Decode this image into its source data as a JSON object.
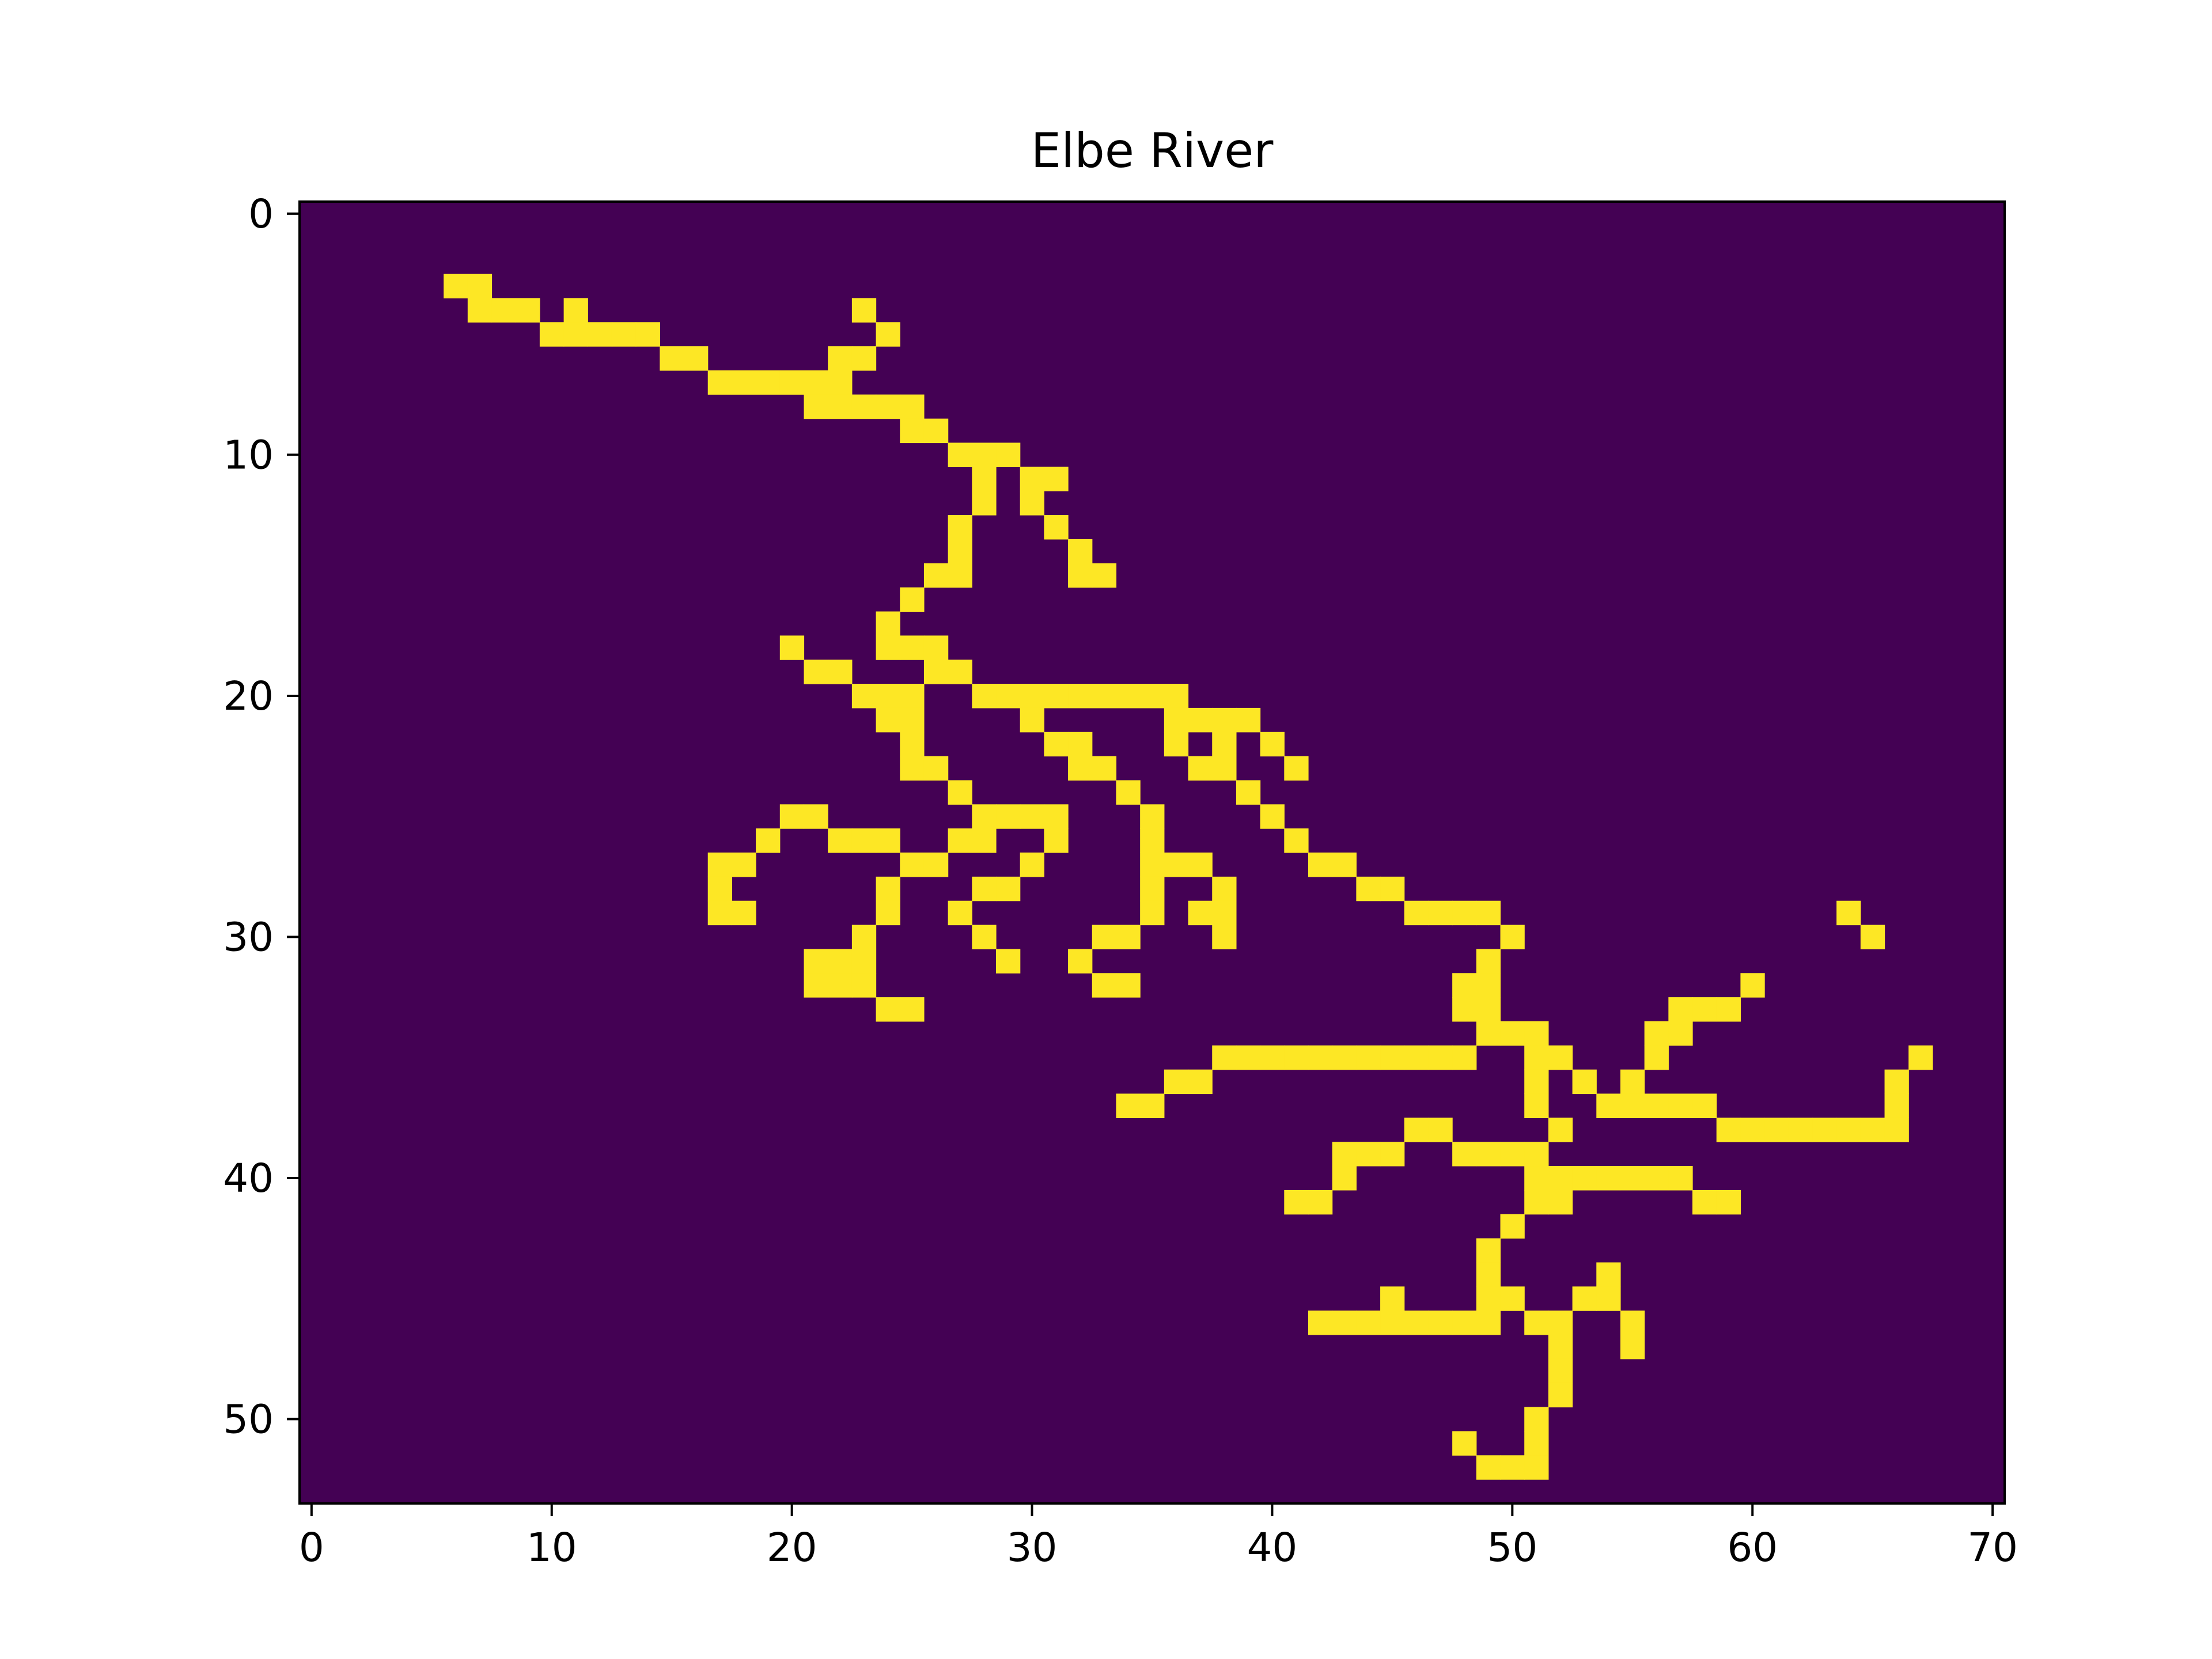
{
  "chart_data": {
    "type": "heatmap",
    "title": "Elbe River",
    "xlabel": "",
    "ylabel": "",
    "n_cols": 71,
    "n_rows": 54,
    "xlim": [
      -0.5,
      70.5
    ],
    "ylim": [
      53.5,
      -0.5
    ],
    "x_ticks": [
      0,
      10,
      20,
      30,
      40,
      50,
      60,
      70
    ],
    "y_ticks": [
      0,
      10,
      20,
      30,
      40,
      50
    ],
    "x_tick_labels": [
      "0",
      "10",
      "20",
      "30",
      "40",
      "50",
      "60",
      "70"
    ],
    "y_tick_labels": [
      "0",
      "10",
      "20",
      "30",
      "40",
      "50"
    ],
    "grid": false,
    "colors": {
      "background": "#440154",
      "value": "#fde725"
    },
    "cells": [
      [
        3,
        6
      ],
      [
        3,
        7
      ],
      [
        4,
        7
      ],
      [
        4,
        8
      ],
      [
        4,
        9
      ],
      [
        4,
        11
      ],
      [
        4,
        23
      ],
      [
        5,
        10
      ],
      [
        5,
        11
      ],
      [
        5,
        12
      ],
      [
        5,
        13
      ],
      [
        5,
        14
      ],
      [
        5,
        24
      ],
      [
        6,
        15
      ],
      [
        6,
        16
      ],
      [
        6,
        22
      ],
      [
        6,
        23
      ],
      [
        7,
        17
      ],
      [
        7,
        18
      ],
      [
        7,
        19
      ],
      [
        7,
        20
      ],
      [
        7,
        21
      ],
      [
        7,
        22
      ],
      [
        8,
        21
      ],
      [
        8,
        22
      ],
      [
        8,
        23
      ],
      [
        8,
        24
      ],
      [
        8,
        25
      ],
      [
        9,
        25
      ],
      [
        9,
        26
      ],
      [
        10,
        27
      ],
      [
        10,
        28
      ],
      [
        10,
        29
      ],
      [
        11,
        28
      ],
      [
        11,
        30
      ],
      [
        11,
        31
      ],
      [
        12,
        28
      ],
      [
        12,
        30
      ],
      [
        13,
        27
      ],
      [
        13,
        31
      ],
      [
        14,
        27
      ],
      [
        14,
        32
      ],
      [
        15,
        26
      ],
      [
        15,
        27
      ],
      [
        15,
        32
      ],
      [
        15,
        33
      ],
      [
        16,
        25
      ],
      [
        17,
        24
      ],
      [
        18,
        20
      ],
      [
        18,
        24
      ],
      [
        18,
        25
      ],
      [
        18,
        26
      ],
      [
        19,
        21
      ],
      [
        19,
        22
      ],
      [
        19,
        26
      ],
      [
        19,
        27
      ],
      [
        20,
        23
      ],
      [
        20,
        24
      ],
      [
        20,
        25
      ],
      [
        20,
        28
      ],
      [
        20,
        29
      ],
      [
        20,
        30
      ],
      [
        20,
        31
      ],
      [
        20,
        32
      ],
      [
        20,
        33
      ],
      [
        20,
        34
      ],
      [
        20,
        35
      ],
      [
        20,
        36
      ],
      [
        21,
        24
      ],
      [
        21,
        25
      ],
      [
        21,
        30
      ],
      [
        21,
        36
      ],
      [
        21,
        37
      ],
      [
        21,
        38
      ],
      [
        21,
        39
      ],
      [
        22,
        25
      ],
      [
        22,
        31
      ],
      [
        22,
        32
      ],
      [
        22,
        36
      ],
      [
        22,
        38
      ],
      [
        22,
        40
      ],
      [
        23,
        25
      ],
      [
        23,
        26
      ],
      [
        23,
        32
      ],
      [
        23,
        33
      ],
      [
        23,
        37
      ],
      [
        23,
        38
      ],
      [
        23,
        41
      ],
      [
        24,
        27
      ],
      [
        24,
        34
      ],
      [
        24,
        39
      ],
      [
        25,
        20
      ],
      [
        25,
        21
      ],
      [
        25,
        28
      ],
      [
        25,
        29
      ],
      [
        25,
        30
      ],
      [
        25,
        31
      ],
      [
        25,
        35
      ],
      [
        25,
        40
      ],
      [
        26,
        19
      ],
      [
        26,
        22
      ],
      [
        26,
        23
      ],
      [
        26,
        24
      ],
      [
        26,
        27
      ],
      [
        26,
        28
      ],
      [
        26,
        31
      ],
      [
        26,
        35
      ],
      [
        26,
        41
      ],
      [
        27,
        17
      ],
      [
        27,
        18
      ],
      [
        27,
        25
      ],
      [
        27,
        26
      ],
      [
        27,
        30
      ],
      [
        27,
        35
      ],
      [
        27,
        36
      ],
      [
        27,
        37
      ],
      [
        27,
        42
      ],
      [
        27,
        43
      ],
      [
        28,
        17
      ],
      [
        28,
        24
      ],
      [
        28,
        28
      ],
      [
        28,
        29
      ],
      [
        28,
        35
      ],
      [
        28,
        38
      ],
      [
        28,
        44
      ],
      [
        28,
        45
      ],
      [
        29,
        17
      ],
      [
        29,
        18
      ],
      [
        29,
        24
      ],
      [
        29,
        27
      ],
      [
        29,
        35
      ],
      [
        29,
        37
      ],
      [
        29,
        38
      ],
      [
        29,
        46
      ],
      [
        29,
        47
      ],
      [
        29,
        48
      ],
      [
        29,
        49
      ],
      [
        29,
        64
      ],
      [
        30,
        23
      ],
      [
        30,
        28
      ],
      [
        30,
        33
      ],
      [
        30,
        34
      ],
      [
        30,
        38
      ],
      [
        30,
        50
      ],
      [
        30,
        65
      ],
      [
        31,
        21
      ],
      [
        31,
        22
      ],
      [
        31,
        23
      ],
      [
        31,
        29
      ],
      [
        31,
        32
      ],
      [
        31,
        49
      ],
      [
        32,
        21
      ],
      [
        32,
        22
      ],
      [
        32,
        23
      ],
      [
        32,
        33
      ],
      [
        32,
        34
      ],
      [
        32,
        48
      ],
      [
        32,
        49
      ],
      [
        32,
        60
      ],
      [
        33,
        24
      ],
      [
        33,
        25
      ],
      [
        33,
        48
      ],
      [
        33,
        49
      ],
      [
        33,
        57
      ],
      [
        33,
        58
      ],
      [
        33,
        59
      ],
      [
        34,
        49
      ],
      [
        34,
        50
      ],
      [
        34,
        51
      ],
      [
        34,
        56
      ],
      [
        34,
        57
      ],
      [
        35,
        38
      ],
      [
        35,
        39
      ],
      [
        35,
        40
      ],
      [
        35,
        41
      ],
      [
        35,
        42
      ],
      [
        35,
        43
      ],
      [
        35,
        44
      ],
      [
        35,
        45
      ],
      [
        35,
        46
      ],
      [
        35,
        47
      ],
      [
        35,
        48
      ],
      [
        35,
        51
      ],
      [
        35,
        52
      ],
      [
        35,
        56
      ],
      [
        35,
        67
      ],
      [
        36,
        36
      ],
      [
        36,
        37
      ],
      [
        36,
        51
      ],
      [
        36,
        53
      ],
      [
        36,
        55
      ],
      [
        36,
        66
      ],
      [
        37,
        34
      ],
      [
        37,
        35
      ],
      [
        37,
        51
      ],
      [
        37,
        54
      ],
      [
        37,
        55
      ],
      [
        37,
        56
      ],
      [
        37,
        57
      ],
      [
        37,
        58
      ],
      [
        37,
        66
      ],
      [
        38,
        46
      ],
      [
        38,
        47
      ],
      [
        38,
        52
      ],
      [
        38,
        59
      ],
      [
        38,
        60
      ],
      [
        38,
        61
      ],
      [
        38,
        62
      ],
      [
        38,
        63
      ],
      [
        38,
        64
      ],
      [
        38,
        65
      ],
      [
        38,
        66
      ],
      [
        39,
        43
      ],
      [
        39,
        44
      ],
      [
        39,
        45
      ],
      [
        39,
        48
      ],
      [
        39,
        49
      ],
      [
        39,
        50
      ],
      [
        39,
        51
      ],
      [
        40,
        43
      ],
      [
        40,
        51
      ],
      [
        40,
        52
      ],
      [
        40,
        53
      ],
      [
        40,
        54
      ],
      [
        40,
        55
      ],
      [
        40,
        56
      ],
      [
        40,
        57
      ],
      [
        41,
        41
      ],
      [
        41,
        42
      ],
      [
        41,
        51
      ],
      [
        41,
        52
      ],
      [
        41,
        58
      ],
      [
        41,
        59
      ],
      [
        42,
        50
      ],
      [
        43,
        49
      ],
      [
        44,
        49
      ],
      [
        44,
        54
      ],
      [
        45,
        45
      ],
      [
        45,
        49
      ],
      [
        45,
        50
      ],
      [
        45,
        53
      ],
      [
        45,
        54
      ],
      [
        46,
        42
      ],
      [
        46,
        43
      ],
      [
        46,
        44
      ],
      [
        46,
        45
      ],
      [
        46,
        46
      ],
      [
        46,
        47
      ],
      [
        46,
        48
      ],
      [
        46,
        49
      ],
      [
        46,
        51
      ],
      [
        46,
        52
      ],
      [
        46,
        55
      ],
      [
        47,
        52
      ],
      [
        47,
        55
      ],
      [
        48,
        52
      ],
      [
        49,
        52
      ],
      [
        50,
        51
      ],
      [
        51,
        48
      ],
      [
        51,
        51
      ],
      [
        52,
        49
      ],
      [
        52,
        50
      ],
      [
        52,
        51
      ]
    ]
  }
}
